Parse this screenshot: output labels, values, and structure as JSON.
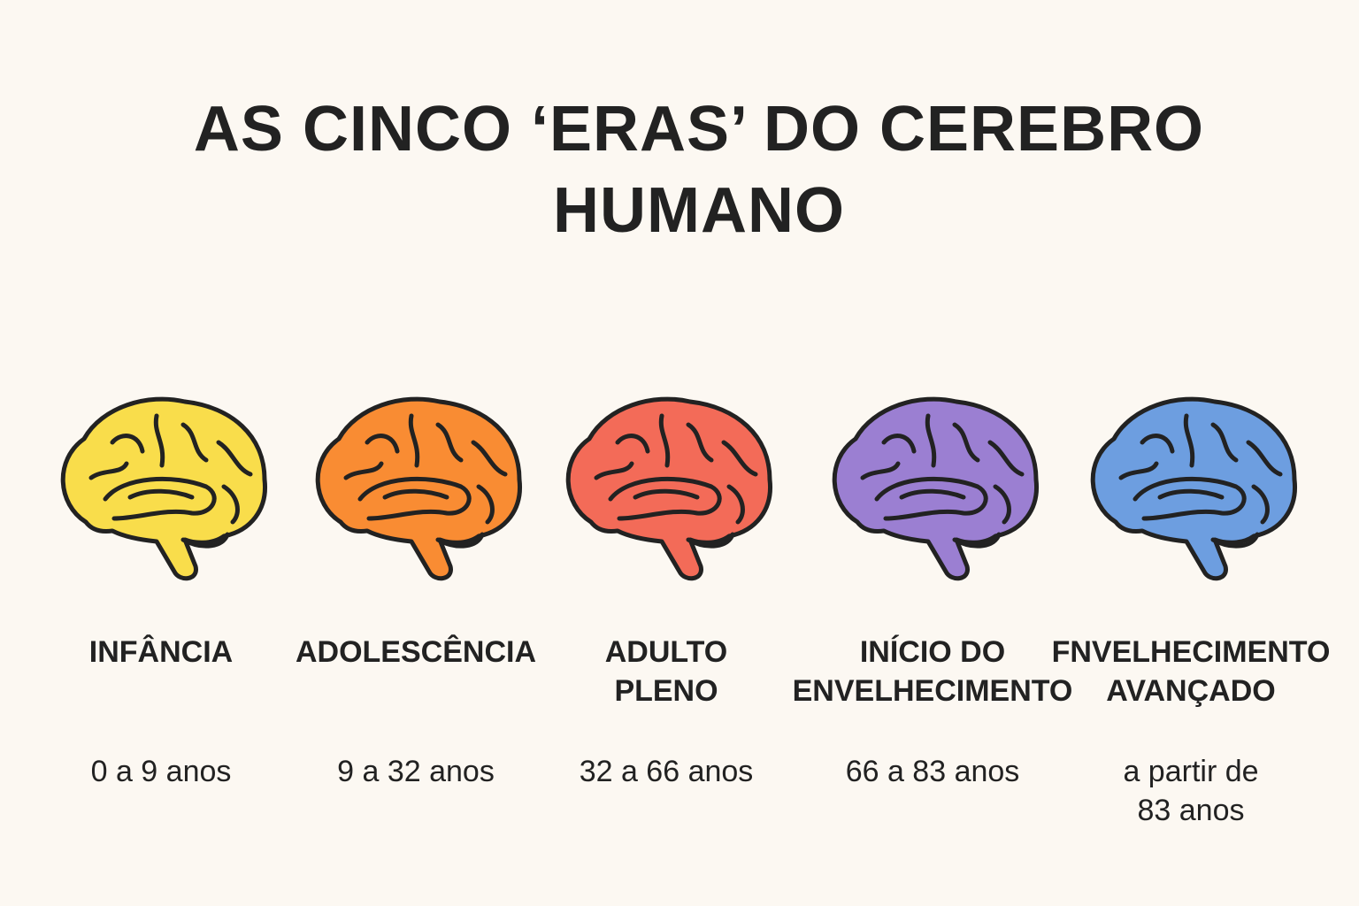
{
  "header": {
    "title": "AS CINCO ‘ERAS’ DO CEREBRO HUMANO"
  },
  "eras": [
    {
      "label": "INFÂNCIA",
      "range": "0 a 9 anos"
    },
    {
      "label": "ADOLESCÊNCIA",
      "range": "9 a 32 anos"
    },
    {
      "label": "ADULTO PLENO",
      "range": "32 a 66 anos"
    },
    {
      "label": "INÍCIO DO ENVELHECIMENTO",
      "range": "66 a 83 anos"
    },
    {
      "label": "FNVELHECIMENTO AVANÇADO",
      "range": "a partir de 83 anos"
    }
  ]
}
